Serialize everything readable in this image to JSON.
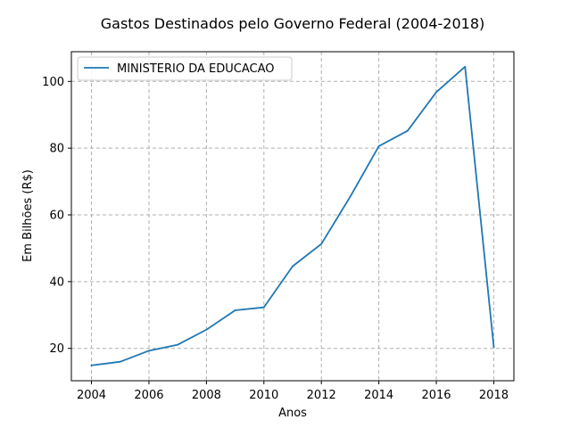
{
  "chart_data": {
    "type": "line",
    "title": "Gastos Destinados pelo Governo Federal (2004-2018)",
    "xlabel": "Anos",
    "ylabel": "Em Bilhões (R$)",
    "x": [
      2004,
      2005,
      2006,
      2007,
      2008,
      2009,
      2010,
      2011,
      2012,
      2013,
      2014,
      2015,
      2016,
      2017,
      2018
    ],
    "series": [
      {
        "name": "MINISTERIO DA EDUCACAO",
        "color": "#1f77b4",
        "values": [
          14.9,
          16.0,
          19.3,
          21.1,
          25.6,
          31.4,
          32.3,
          44.6,
          51.3,
          65.4,
          80.6,
          85.2,
          96.8,
          104.4,
          20.4
        ]
      }
    ],
    "xlim": [
      2003.3,
      2018.7
    ],
    "ylim": [
      10.3,
      108.9
    ],
    "xticks": [
      "2004",
      "2006",
      "2008",
      "2010",
      "2012",
      "2014",
      "2016",
      "2018"
    ],
    "yticks": [
      "20",
      "40",
      "60",
      "80",
      "100"
    ],
    "grid": true,
    "legend_position": "top-left"
  }
}
